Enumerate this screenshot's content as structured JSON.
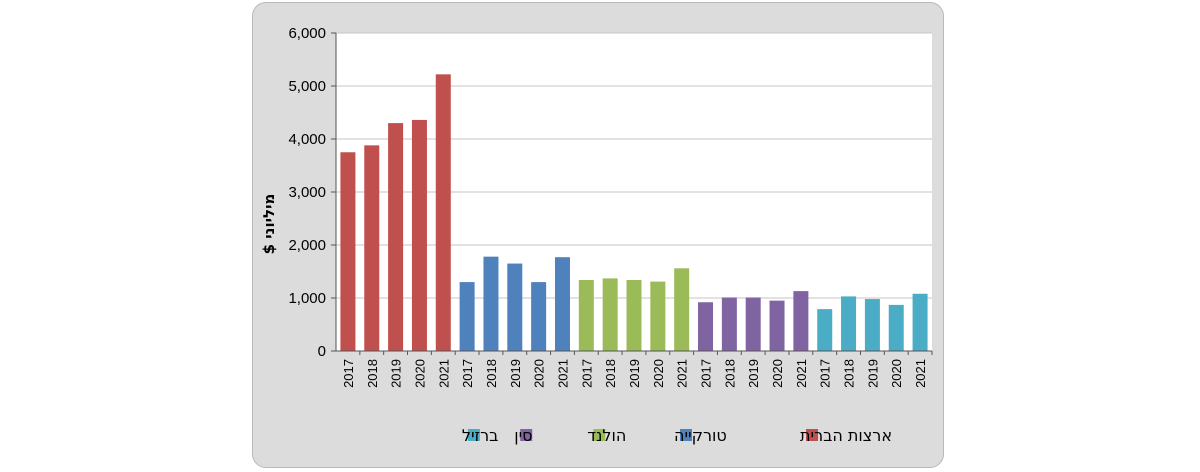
{
  "chart_data": {
    "type": "bar",
    "ylabel": "מיליוני $",
    "ylim": [
      0,
      6000
    ],
    "yticks": [
      0,
      1000,
      2000,
      3000,
      4000,
      5000,
      6000
    ],
    "ytick_labels": [
      "0",
      "1,000",
      "2,000",
      "3,000",
      "4,000",
      "5,000",
      "6,000"
    ],
    "years": [
      "2017",
      "2018",
      "2019",
      "2020",
      "2021"
    ],
    "grid": true,
    "legend_position": "bottom",
    "series": [
      {
        "name": "ארצות הברית",
        "color": "#c0504d",
        "values": [
          3750,
          3880,
          4300,
          4360,
          5220
        ]
      },
      {
        "name": "טורקייה",
        "color": "#4f81bd",
        "values": [
          1300,
          1780,
          1650,
          1300,
          1770
        ]
      },
      {
        "name": "הולנד",
        "color": "#9bbb59",
        "values": [
          1340,
          1370,
          1340,
          1310,
          1560
        ]
      },
      {
        "name": "סין",
        "color": "#8064a2",
        "values": [
          920,
          1010,
          1010,
          950,
          1130
        ]
      },
      {
        "name": "ברזיל",
        "color": "#4bacc6",
        "values": [
          790,
          1030,
          980,
          870,
          1080
        ]
      }
    ]
  }
}
